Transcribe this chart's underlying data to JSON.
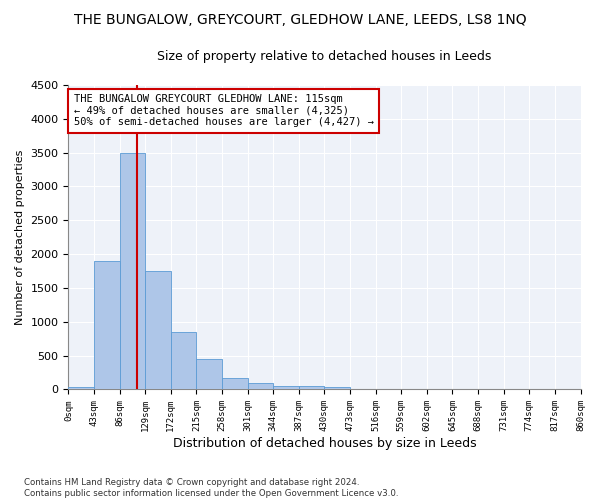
{
  "title": "THE BUNGALOW, GREYCOURT, GLEDHOW LANE, LEEDS, LS8 1NQ",
  "subtitle": "Size of property relative to detached houses in Leeds",
  "xlabel": "Distribution of detached houses by size in Leeds",
  "ylabel": "Number of detached properties",
  "bar_values": [
    40,
    1900,
    3500,
    1750,
    850,
    450,
    170,
    100,
    55,
    55,
    40,
    0,
    0,
    0,
    0,
    0,
    0,
    0,
    0,
    0
  ],
  "bar_labels": [
    "0sqm",
    "43sqm",
    "86sqm",
    "129sqm",
    "172sqm",
    "215sqm",
    "258sqm",
    "301sqm",
    "344sqm",
    "387sqm",
    "430sqm",
    "473sqm",
    "516sqm",
    "559sqm",
    "602sqm",
    "645sqm",
    "688sqm",
    "731sqm",
    "774sqm",
    "817sqm",
    "860sqm"
  ],
  "bar_color": "#aec6e8",
  "bar_edge_color": "#5b9bd5",
  "vline_color": "#cc0000",
  "ylim": [
    0,
    4500
  ],
  "yticks": [
    0,
    500,
    1000,
    1500,
    2000,
    2500,
    3000,
    3500,
    4000,
    4500
  ],
  "annotation_title": "THE BUNGALOW GREYCOURT GLEDHOW LANE: 115sqm",
  "annotation_line1": "← 49% of detached houses are smaller (4,325)",
  "annotation_line2": "50% of semi-detached houses are larger (4,427) →",
  "annotation_box_color": "#cc0000",
  "footer_line1": "Contains HM Land Registry data © Crown copyright and database right 2024.",
  "footer_line2": "Contains public sector information licensed under the Open Government Licence v3.0.",
  "bg_color": "#eef2f9",
  "grid_color": "#ffffff",
  "title_fontsize": 10,
  "subtitle_fontsize": 9,
  "property_sqm": 115,
  "bin_width": 43
}
